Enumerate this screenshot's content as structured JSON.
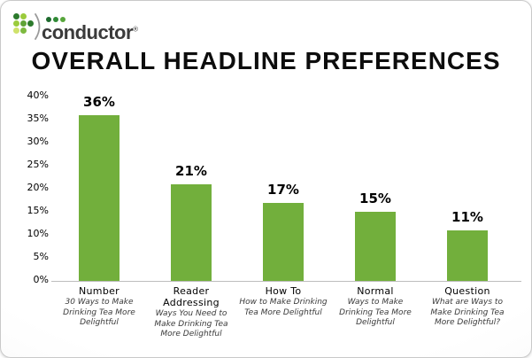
{
  "logo": {
    "name": "conductor",
    "registered": "®",
    "dot_grid_colors": [
      "#2c7a2c",
      "#9bcb3c",
      "transparent",
      "#9bcb3c",
      "#5fa336",
      "#2c7a2c",
      "#cfe26b",
      "#7db93f",
      "transparent"
    ],
    "dot_row_colors": [
      "#1e6b2e",
      "#2f8a35",
      "#57a63b"
    ],
    "arc_color": "#9a9a9a"
  },
  "title": "OVERALL HEADLINE PREFERENCES",
  "chart_data": {
    "type": "bar",
    "title": "OVERALL HEADLINE PREFERENCES",
    "categories": [
      "Number",
      "Reader Addressing",
      "How To",
      "Normal",
      "Question"
    ],
    "category_examples": [
      "30 Ways to Make Drinking Tea More Delightful",
      "Ways You Need to Make Drinking Tea More Delightful",
      "How to Make Drinking Tea More Delightful",
      "Ways to Make Drinking Tea More Delightful",
      "What are Ways to Make Drinking Tea More Delightful?"
    ],
    "values": [
      36,
      21,
      17,
      15,
      11
    ],
    "value_labels": [
      "36%",
      "21%",
      "17%",
      "15%",
      "11%"
    ],
    "ylim": [
      0,
      40
    ],
    "y_tick_step": 5,
    "y_tick_labels": [
      "0%",
      "5%",
      "10%",
      "15%",
      "20%",
      "25%",
      "30%",
      "35%",
      "40%"
    ],
    "grid": false,
    "legend": false,
    "bar_color": "#72af3c",
    "axis_color": "#bdbdbd"
  }
}
